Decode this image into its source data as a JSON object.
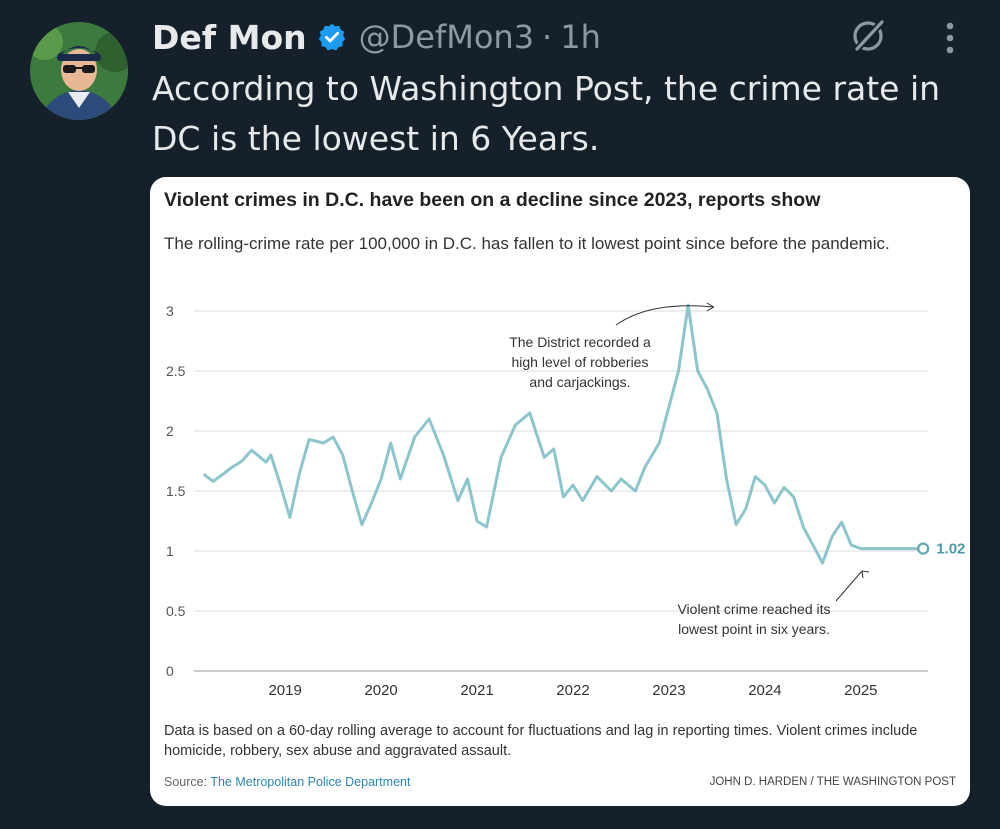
{
  "tweet": {
    "display_name": "Def Mon",
    "handle": "@DefMon3",
    "separator": "·",
    "time": "1h",
    "text": "According to Washington Post, the crime rate in DC is the lowest in 6 Years.",
    "icons": [
      "verified-badge-icon",
      "grok-icon",
      "more-icon"
    ],
    "colors": {
      "background": "#15202b",
      "verified": "#1d9bf0",
      "muted": "#8b98a5"
    }
  },
  "card": {
    "title": "Violent crimes in D.C. have been on a decline since 2023, reports show",
    "subtitle": "The rolling-crime rate per 100,000 in D.C. has fallen to it lowest point since before the pandemic.",
    "note": "Data is based on a 60-day rolling average to account for fluctuations and lag in reporting times. Violent crimes include homicide, robbery, sex abuse and aggravated assault.",
    "source_prefix": "Source:",
    "source_name": "The Metropolitan Police Department",
    "credit": "JOHN D. HARDEN / THE WASHINGTON POST"
  },
  "chart_data": {
    "type": "line",
    "title": "Violent crimes in D.C. have been on a decline since 2023, reports show",
    "ylabel": "",
    "xlabel": "",
    "ylim": [
      0,
      3.1
    ],
    "xlim": [
      2018.1,
      2025.75
    ],
    "y_ticks": [
      "0",
      "0.5",
      "1",
      "1.5",
      "2",
      "2.5",
      "3"
    ],
    "x_ticks": [
      "2019",
      "2020",
      "2021",
      "2022",
      "2023",
      "2024",
      "2025"
    ],
    "grid": "horizontal",
    "line_color": "#8cc5cc",
    "series": [
      {
        "x": [
          2018.2,
          2018.3,
          2018.5,
          2018.6,
          2018.7,
          2018.85,
          2018.9,
          2019.0,
          2019.1,
          2019.2,
          2019.3,
          2019.45,
          2019.55,
          2019.65,
          2019.75,
          2019.85,
          2019.95,
          2020.05,
          2020.15,
          2020.25,
          2020.4,
          2020.55,
          2020.7,
          2020.85,
          2020.95,
          2021.05,
          2021.15,
          2021.3,
          2021.45,
          2021.6,
          2021.75,
          2021.85,
          2021.95,
          2022.05,
          2022.15,
          2022.3,
          2022.45,
          2022.55,
          2022.7,
          2022.8,
          2022.95,
          2023.05,
          2023.15,
          2023.25,
          2023.35,
          2023.45,
          2023.55,
          2023.65,
          2023.75,
          2023.85,
          2023.95,
          2024.05,
          2024.15,
          2024.25,
          2024.35,
          2024.45,
          2024.55,
          2024.65,
          2024.75,
          2024.85,
          2024.95,
          2025.05,
          2025.15,
          2025.3,
          2025.4,
          2025.5,
          2025.6,
          2025.7
        ],
        "y": [
          1.64,
          1.58,
          1.7,
          1.75,
          1.84,
          1.74,
          1.8,
          1.55,
          1.28,
          1.65,
          1.93,
          1.9,
          1.95,
          1.8,
          1.5,
          1.22,
          1.4,
          1.6,
          1.9,
          1.6,
          1.95,
          2.1,
          1.8,
          1.42,
          1.6,
          1.25,
          1.2,
          1.78,
          2.05,
          2.15,
          1.78,
          1.85,
          1.45,
          1.55,
          1.42,
          1.62,
          1.5,
          1.6,
          1.5,
          1.7,
          1.9,
          2.2,
          2.5,
          3.05,
          2.5,
          2.35,
          2.15,
          1.6,
          1.22,
          1.35,
          1.62,
          1.55,
          1.4,
          1.53,
          1.45,
          1.2,
          1.05,
          0.9,
          1.12,
          1.24,
          1.05,
          1.02,
          1.02,
          1.02,
          1.02,
          1.02,
          1.02,
          1.02
        ],
        "end_label": "1.02"
      }
    ],
    "annotations": [
      {
        "text_lines": [
          "The District recorded a",
          "high level of robberies",
          "and carjackings."
        ],
        "points_to": [
          2023.58,
          3.05
        ]
      },
      {
        "text_lines": [
          "Violent crime reached its",
          "lowest point in six years."
        ],
        "points_to": [
          2025.02,
          0.9
        ]
      }
    ]
  }
}
